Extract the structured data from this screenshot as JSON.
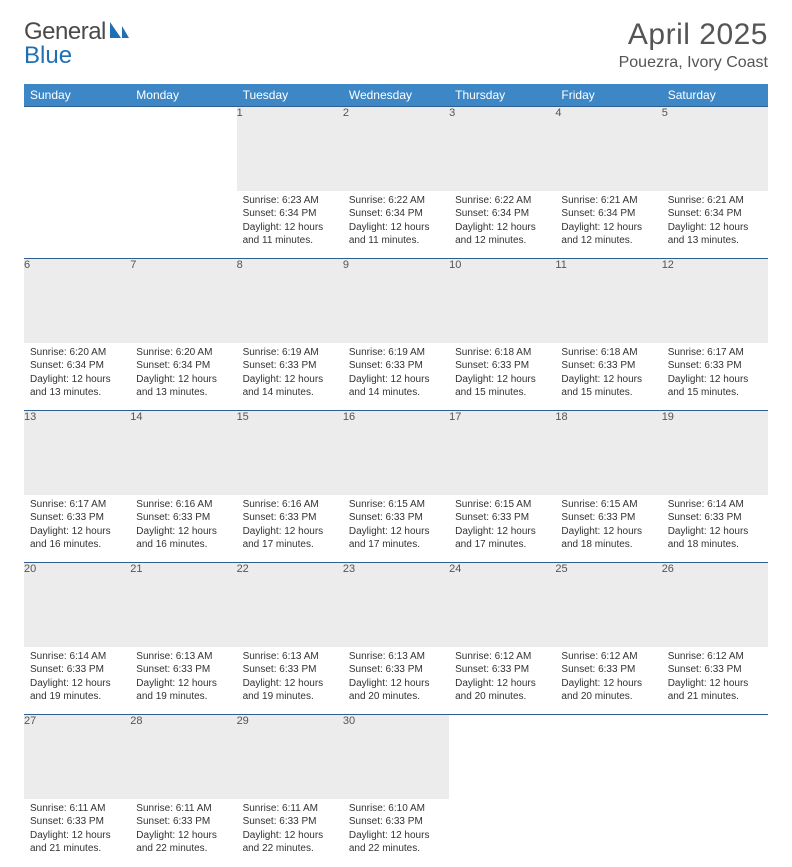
{
  "logo": {
    "left": "General",
    "right": "Blue"
  },
  "title": "April 2025",
  "location": "Pouezra, Ivory Coast",
  "colors": {
    "header_bg": "#3d87c7",
    "header_text": "#ffffff",
    "rule": "#2f5f8f",
    "daynum_bg": "#ececec",
    "body_text": "#333333",
    "page_bg": "#ffffff",
    "logo_gray": "#6b6b6b",
    "logo_blue": "#1f6fb2"
  },
  "day_headers": [
    "Sunday",
    "Monday",
    "Tuesday",
    "Wednesday",
    "Thursday",
    "Friday",
    "Saturday"
  ],
  "weeks": [
    [
      null,
      null,
      {
        "n": "1",
        "sr": "Sunrise: 6:23 AM",
        "ss": "Sunset: 6:34 PM",
        "dl": "Daylight: 12 hours and 11 minutes."
      },
      {
        "n": "2",
        "sr": "Sunrise: 6:22 AM",
        "ss": "Sunset: 6:34 PM",
        "dl": "Daylight: 12 hours and 11 minutes."
      },
      {
        "n": "3",
        "sr": "Sunrise: 6:22 AM",
        "ss": "Sunset: 6:34 PM",
        "dl": "Daylight: 12 hours and 12 minutes."
      },
      {
        "n": "4",
        "sr": "Sunrise: 6:21 AM",
        "ss": "Sunset: 6:34 PM",
        "dl": "Daylight: 12 hours and 12 minutes."
      },
      {
        "n": "5",
        "sr": "Sunrise: 6:21 AM",
        "ss": "Sunset: 6:34 PM",
        "dl": "Daylight: 12 hours and 13 minutes."
      }
    ],
    [
      {
        "n": "6",
        "sr": "Sunrise: 6:20 AM",
        "ss": "Sunset: 6:34 PM",
        "dl": "Daylight: 12 hours and 13 minutes."
      },
      {
        "n": "7",
        "sr": "Sunrise: 6:20 AM",
        "ss": "Sunset: 6:34 PM",
        "dl": "Daylight: 12 hours and 13 minutes."
      },
      {
        "n": "8",
        "sr": "Sunrise: 6:19 AM",
        "ss": "Sunset: 6:33 PM",
        "dl": "Daylight: 12 hours and 14 minutes."
      },
      {
        "n": "9",
        "sr": "Sunrise: 6:19 AM",
        "ss": "Sunset: 6:33 PM",
        "dl": "Daylight: 12 hours and 14 minutes."
      },
      {
        "n": "10",
        "sr": "Sunrise: 6:18 AM",
        "ss": "Sunset: 6:33 PM",
        "dl": "Daylight: 12 hours and 15 minutes."
      },
      {
        "n": "11",
        "sr": "Sunrise: 6:18 AM",
        "ss": "Sunset: 6:33 PM",
        "dl": "Daylight: 12 hours and 15 minutes."
      },
      {
        "n": "12",
        "sr": "Sunrise: 6:17 AM",
        "ss": "Sunset: 6:33 PM",
        "dl": "Daylight: 12 hours and 15 minutes."
      }
    ],
    [
      {
        "n": "13",
        "sr": "Sunrise: 6:17 AM",
        "ss": "Sunset: 6:33 PM",
        "dl": "Daylight: 12 hours and 16 minutes."
      },
      {
        "n": "14",
        "sr": "Sunrise: 6:16 AM",
        "ss": "Sunset: 6:33 PM",
        "dl": "Daylight: 12 hours and 16 minutes."
      },
      {
        "n": "15",
        "sr": "Sunrise: 6:16 AM",
        "ss": "Sunset: 6:33 PM",
        "dl": "Daylight: 12 hours and 17 minutes."
      },
      {
        "n": "16",
        "sr": "Sunrise: 6:15 AM",
        "ss": "Sunset: 6:33 PM",
        "dl": "Daylight: 12 hours and 17 minutes."
      },
      {
        "n": "17",
        "sr": "Sunrise: 6:15 AM",
        "ss": "Sunset: 6:33 PM",
        "dl": "Daylight: 12 hours and 17 minutes."
      },
      {
        "n": "18",
        "sr": "Sunrise: 6:15 AM",
        "ss": "Sunset: 6:33 PM",
        "dl": "Daylight: 12 hours and 18 minutes."
      },
      {
        "n": "19",
        "sr": "Sunrise: 6:14 AM",
        "ss": "Sunset: 6:33 PM",
        "dl": "Daylight: 12 hours and 18 minutes."
      }
    ],
    [
      {
        "n": "20",
        "sr": "Sunrise: 6:14 AM",
        "ss": "Sunset: 6:33 PM",
        "dl": "Daylight: 12 hours and 19 minutes."
      },
      {
        "n": "21",
        "sr": "Sunrise: 6:13 AM",
        "ss": "Sunset: 6:33 PM",
        "dl": "Daylight: 12 hours and 19 minutes."
      },
      {
        "n": "22",
        "sr": "Sunrise: 6:13 AM",
        "ss": "Sunset: 6:33 PM",
        "dl": "Daylight: 12 hours and 19 minutes."
      },
      {
        "n": "23",
        "sr": "Sunrise: 6:13 AM",
        "ss": "Sunset: 6:33 PM",
        "dl": "Daylight: 12 hours and 20 minutes."
      },
      {
        "n": "24",
        "sr": "Sunrise: 6:12 AM",
        "ss": "Sunset: 6:33 PM",
        "dl": "Daylight: 12 hours and 20 minutes."
      },
      {
        "n": "25",
        "sr": "Sunrise: 6:12 AM",
        "ss": "Sunset: 6:33 PM",
        "dl": "Daylight: 12 hours and 20 minutes."
      },
      {
        "n": "26",
        "sr": "Sunrise: 6:12 AM",
        "ss": "Sunset: 6:33 PM",
        "dl": "Daylight: 12 hours and 21 minutes."
      }
    ],
    [
      {
        "n": "27",
        "sr": "Sunrise: 6:11 AM",
        "ss": "Sunset: 6:33 PM",
        "dl": "Daylight: 12 hours and 21 minutes."
      },
      {
        "n": "28",
        "sr": "Sunrise: 6:11 AM",
        "ss": "Sunset: 6:33 PM",
        "dl": "Daylight: 12 hours and 22 minutes."
      },
      {
        "n": "29",
        "sr": "Sunrise: 6:11 AM",
        "ss": "Sunset: 6:33 PM",
        "dl": "Daylight: 12 hours and 22 minutes."
      },
      {
        "n": "30",
        "sr": "Sunrise: 6:10 AM",
        "ss": "Sunset: 6:33 PM",
        "dl": "Daylight: 12 hours and 22 minutes."
      },
      null,
      null,
      null
    ]
  ]
}
